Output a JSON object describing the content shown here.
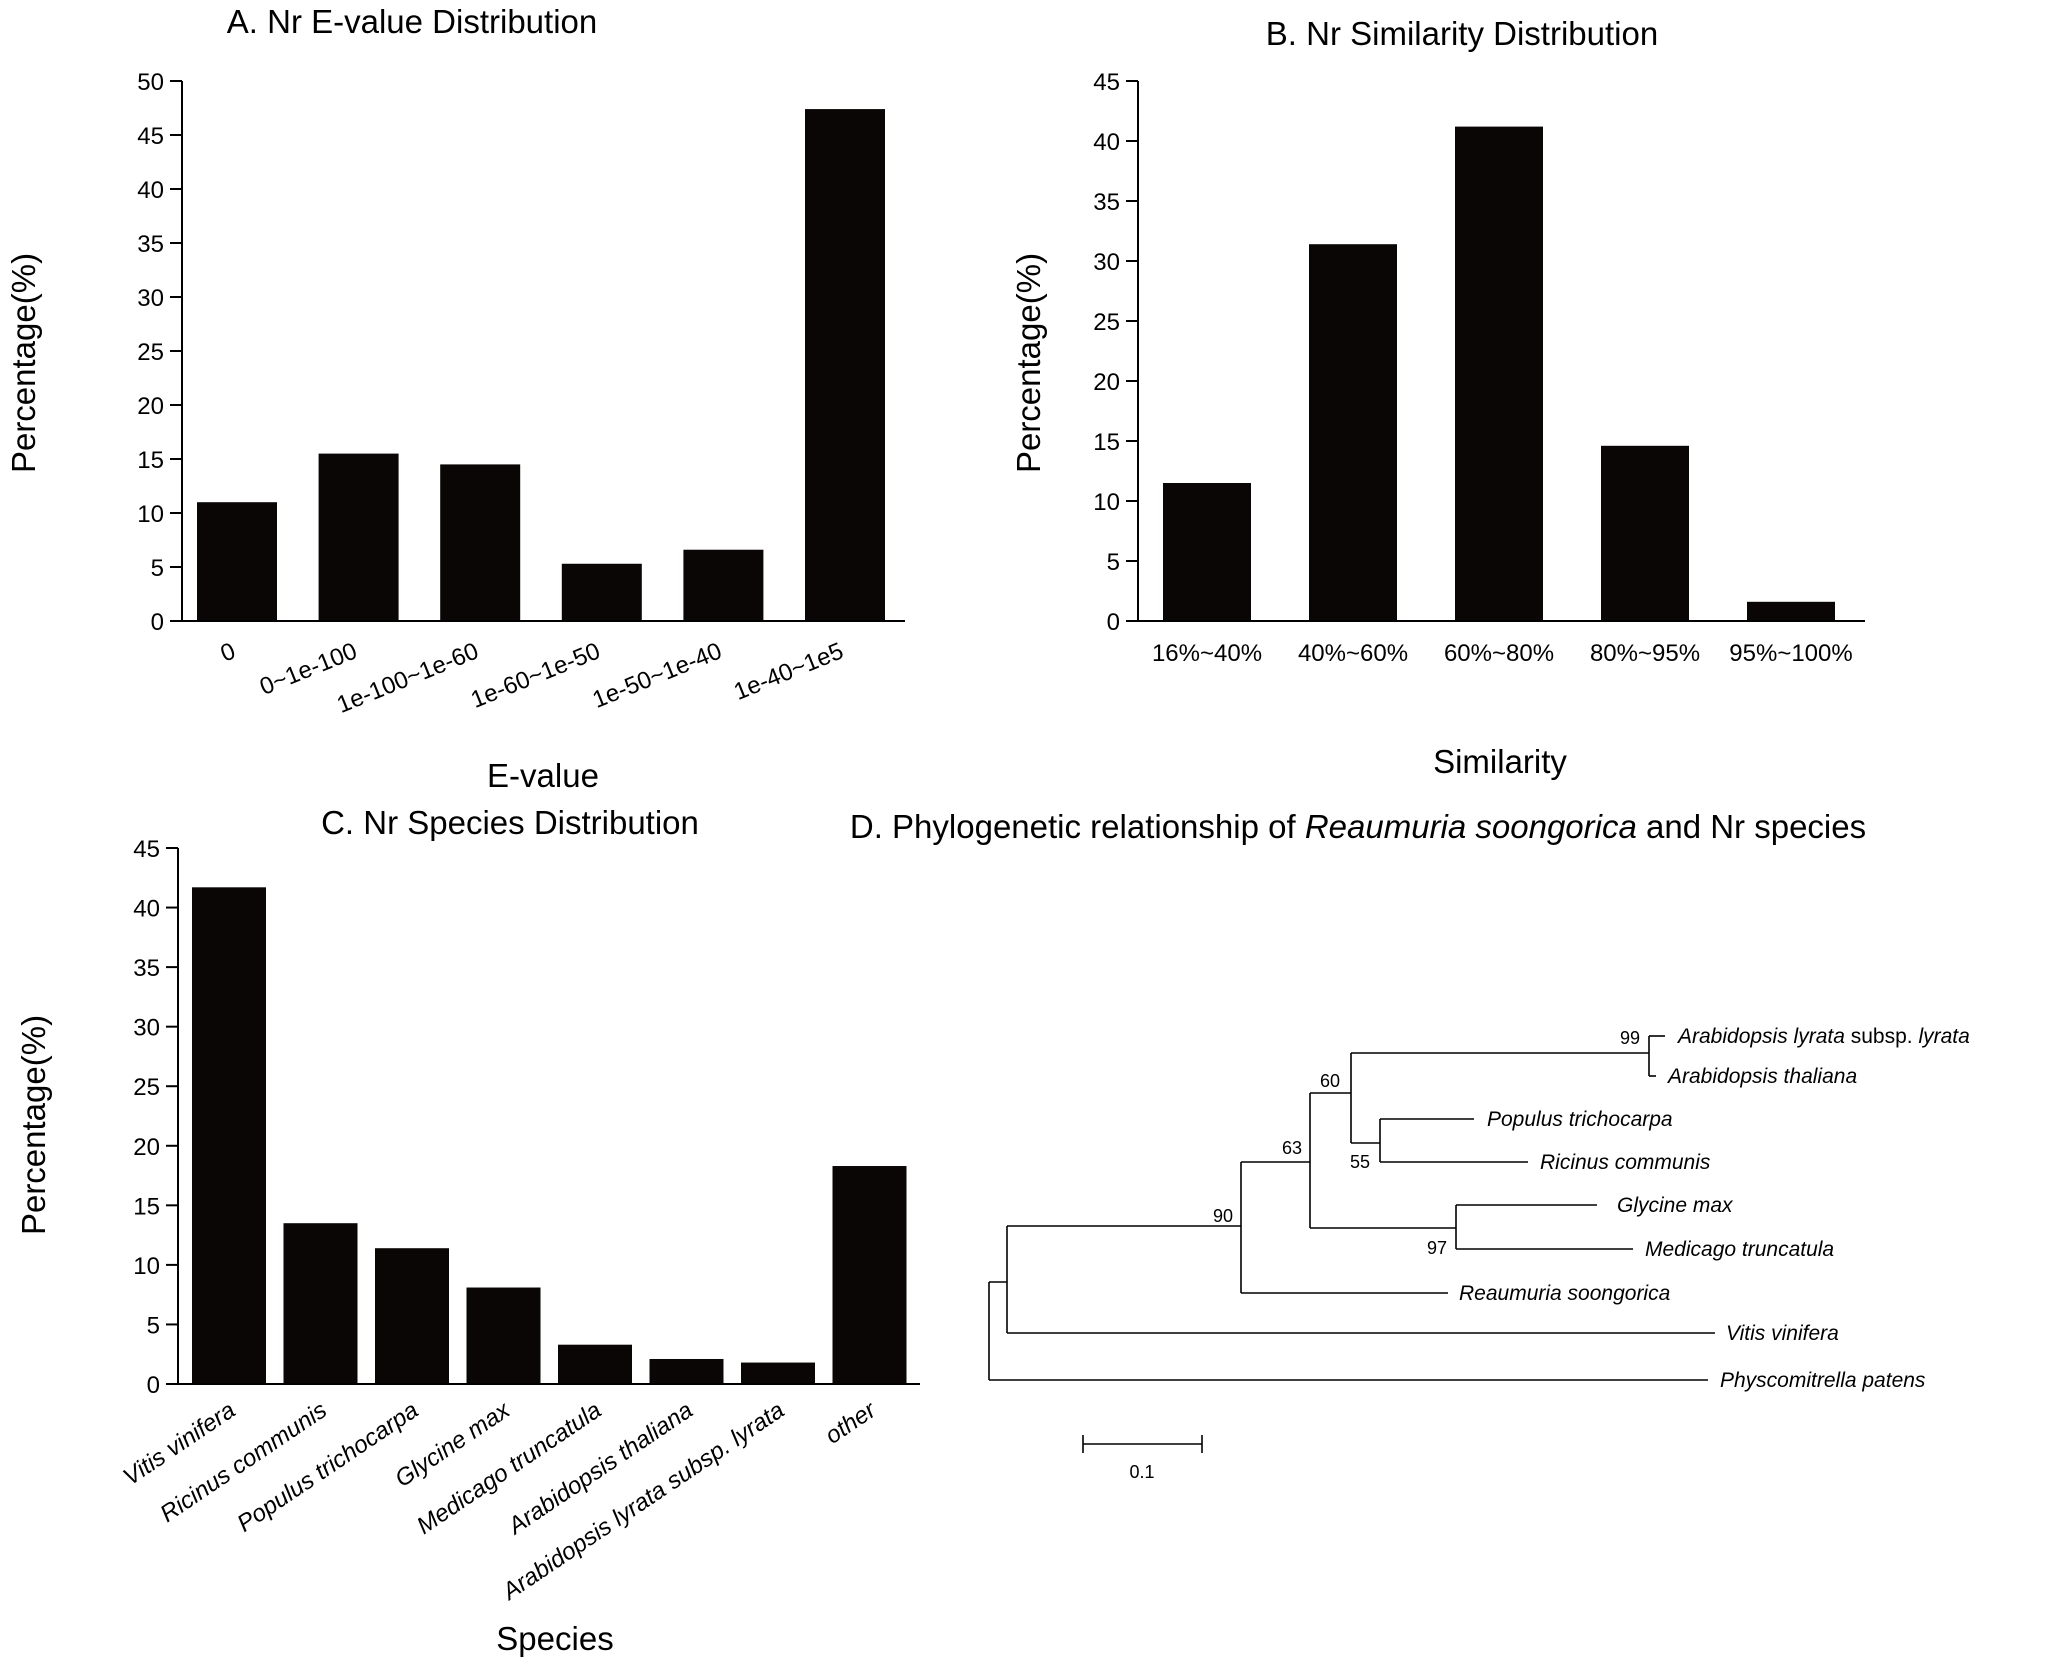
{
  "chart_data": [
    {
      "type": "bar",
      "title": "A. Nr E-value Distribution",
      "xlabel": "E-value",
      "ylabel": "Percentage(%)",
      "categories": [
        "0",
        "0~1e-100",
        "1e-100~1e-60",
        "1e-60~1e-50",
        "1e-50~1e-40",
        "1e-40~1e5"
      ],
      "values": [
        11.0,
        15.5,
        14.5,
        5.3,
        6.6,
        47.4
      ],
      "ylim": [
        0,
        50
      ],
      "yticks": [
        "0",
        "5",
        "10",
        "15",
        "20",
        "25",
        "30",
        "35",
        "40",
        "45",
        "50"
      ],
      "bar_color": "#0a0606",
      "grid": false,
      "legend": "none"
    },
    {
      "type": "bar",
      "title": "B. Nr Similarity Distribution",
      "xlabel": "Similarity",
      "ylabel": "Percentage(%)",
      "categories": [
        "16%~40%",
        "40%~60%",
        "60%~80%",
        "80%~95%",
        "95%~100%"
      ],
      "values": [
        11.5,
        31.4,
        41.2,
        14.6,
        1.6
      ],
      "ylim": [
        0,
        45
      ],
      "yticks": [
        "0",
        "5",
        "10",
        "15",
        "20",
        "25",
        "30",
        "35",
        "40",
        "45"
      ],
      "bar_color": "#0a0606",
      "grid": false,
      "legend": "none"
    },
    {
      "type": "bar",
      "title": "C. Nr Species Distribution",
      "xlabel": "Species",
      "ylabel": "Percentage(%)",
      "categories": [
        "Vitis vinifera",
        "Ricinus communis",
        "Populus trichocarpa",
        "Glycine max",
        "Medicago truncatula",
        "Arabidopsis thaliana",
        "Arabidopsis lyrata subsp. lyrata",
        "other"
      ],
      "values": [
        41.7,
        13.5,
        11.4,
        8.1,
        3.3,
        2.1,
        1.8,
        18.3
      ],
      "ylim": [
        0,
        45
      ],
      "yticks": [
        "0",
        "5",
        "10",
        "15",
        "20",
        "25",
        "30",
        "35",
        "40",
        "45"
      ],
      "bar_color": "#0a0606",
      "grid": false,
      "legend": "none"
    }
  ],
  "tree": {
    "title_prefix": "D. Phylogenetic relationship of ",
    "title_species": "Reaumuria soongorica",
    "title_suffix": " and Nr species",
    "taxa": [
      {
        "name_italic": "Arabidopsis lyrata",
        "name_plain": " subsp. ",
        "name_italic2": "lyrata"
      },
      {
        "name_italic": "Arabidopsis thaliana"
      },
      {
        "name_italic": "Populus trichocarpa"
      },
      {
        "name_italic": "Ricinus communis"
      },
      {
        "name_italic": "Glycine max"
      },
      {
        "name_italic": "Medicago truncatula"
      },
      {
        "name_italic": "Reaumuria soongorica"
      },
      {
        "name_italic": "Vitis vinifera"
      },
      {
        "name_italic": "Physcomitrella patens"
      }
    ],
    "support_values": [
      "99",
      "60",
      "55",
      "63",
      "97",
      "90"
    ],
    "scale_bar_label": "0.1",
    "scale_bar_value": 0.1
  }
}
